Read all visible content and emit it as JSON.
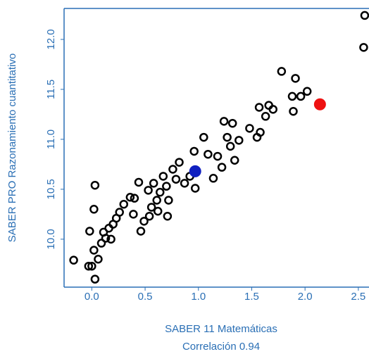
{
  "chart_data": {
    "type": "scatter",
    "xlabel": "SABER 11  Matemáticas",
    "subtitle": "Correlación 0.94",
    "ylabel": "SABER PRO  Razonamiento cuantitativo",
    "xlim": [
      -0.26,
      2.6
    ],
    "ylim": [
      9.52,
      12.31
    ],
    "xticks": [
      {
        "value": 0,
        "label": "0.0"
      },
      0.5,
      {
        "value": 1,
        "label": "1.0"
      },
      1.5,
      {
        "value": 2,
        "label": "2.0"
      },
      2.5
    ],
    "yticks": [
      {
        "value": 10,
        "label": "10.0"
      },
      10.5,
      {
        "value": 11,
        "label": "11.0"
      },
      11.5,
      {
        "value": 12,
        "label": "12.0"
      }
    ],
    "axis_color": "#2a6fb5",
    "series": [
      {
        "color": "#000000",
        "filled": false,
        "x": [
          -0.17,
          0.03,
          -0.03,
          0.0,
          0.06,
          0.02,
          -0.02,
          0.02,
          0.03,
          0.09,
          0.13,
          0.16,
          0.2,
          0.11,
          0.23,
          0.26,
          0.18,
          0.3,
          0.36,
          0.4,
          0.44,
          0.39,
          0.46,
          0.49,
          0.54,
          0.56,
          0.53,
          0.58,
          0.61,
          0.62,
          0.64,
          0.67,
          0.7,
          0.72,
          0.71,
          0.76,
          0.79,
          0.82,
          0.87,
          0.92,
          0.96,
          0.97,
          1.05,
          1.09,
          1.14,
          1.18,
          1.22,
          1.24,
          1.27,
          1.3,
          1.32,
          1.34,
          1.38,
          1.48,
          1.55,
          1.58,
          1.57,
          1.63,
          1.66,
          1.7,
          1.78,
          1.89,
          1.91,
          1.88,
          1.96,
          2.02,
          2.55,
          2.56
        ],
        "values": [
          9.79,
          9.6,
          9.73,
          9.73,
          9.8,
          9.89,
          10.08,
          10.3,
          10.54,
          9.96,
          10.01,
          10.11,
          10.15,
          10.07,
          10.21,
          10.27,
          10.0,
          10.35,
          10.42,
          10.41,
          10.57,
          10.25,
          10.08,
          10.18,
          10.23,
          10.32,
          10.49,
          10.56,
          10.39,
          10.28,
          10.47,
          10.63,
          10.53,
          10.39,
          10.23,
          10.7,
          10.6,
          10.77,
          10.56,
          10.63,
          10.88,
          10.51,
          11.02,
          10.85,
          10.61,
          10.83,
          10.72,
          11.18,
          11.02,
          10.93,
          11.16,
          10.79,
          10.99,
          11.11,
          11.02,
          11.07,
          11.32,
          11.23,
          11.34,
          11.3,
          11.68,
          11.28,
          11.61,
          11.43,
          11.43,
          11.48,
          11.92,
          12.24
        ]
      },
      {
        "color": "#1020c0",
        "filled": true,
        "x": [
          0.97
        ],
        "values": [
          10.68
        ]
      },
      {
        "color": "#ee1111",
        "filled": true,
        "x": [
          2.14
        ],
        "values": [
          11.35
        ]
      }
    ]
  }
}
